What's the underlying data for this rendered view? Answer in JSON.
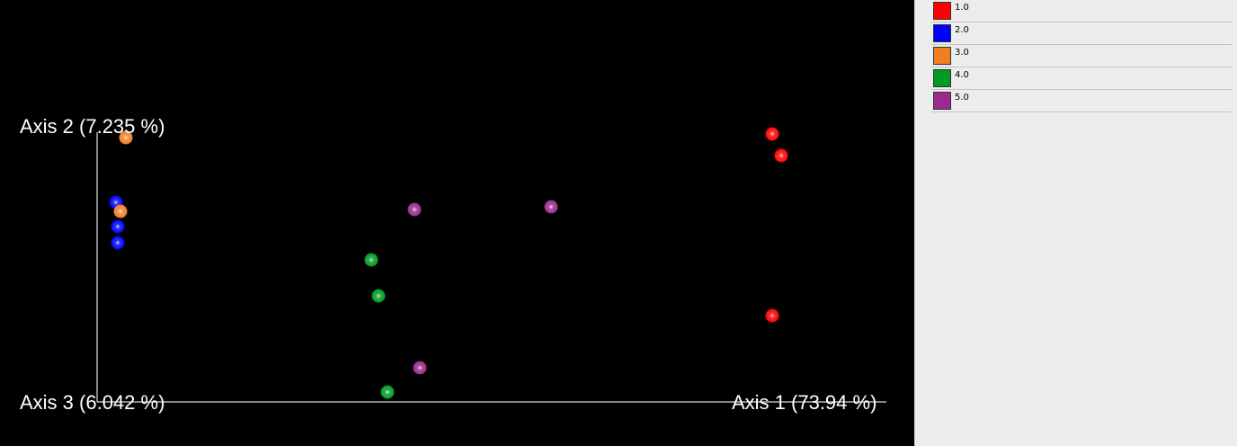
{
  "chart_data": {
    "type": "scatter",
    "axes": {
      "axis1": "Axis 1 (73.94 %)",
      "axis2": "Axis 2 (7.235 %)",
      "axis3": "Axis 3 (6.042 %)"
    },
    "series": [
      {
        "name": "1.0",
        "color": "#ff0000",
        "points": [
          [
            859,
            149
          ],
          [
            869,
            173
          ],
          [
            859,
            351
          ]
        ]
      },
      {
        "name": "2.0",
        "color": "#0000ff",
        "points": [
          [
            129,
            225
          ],
          [
            131,
            252
          ],
          [
            131,
            270
          ]
        ]
      },
      {
        "name": "3.0",
        "color": "#f07f24",
        "points": [
          [
            140,
            153
          ],
          [
            134,
            235
          ]
        ]
      },
      {
        "name": "4.0",
        "color": "#009a24",
        "points": [
          [
            413,
            289
          ],
          [
            421,
            329
          ],
          [
            431,
            436
          ]
        ]
      },
      {
        "name": "5.0",
        "color": "#9a2a8e",
        "points": [
          [
            461,
            233
          ],
          [
            613,
            230
          ],
          [
            467,
            409
          ]
        ]
      }
    ],
    "legend": {
      "position": "right",
      "entries": [
        "1.0",
        "2.0",
        "3.0",
        "4.0",
        "5.0"
      ]
    },
    "grid": false
  }
}
